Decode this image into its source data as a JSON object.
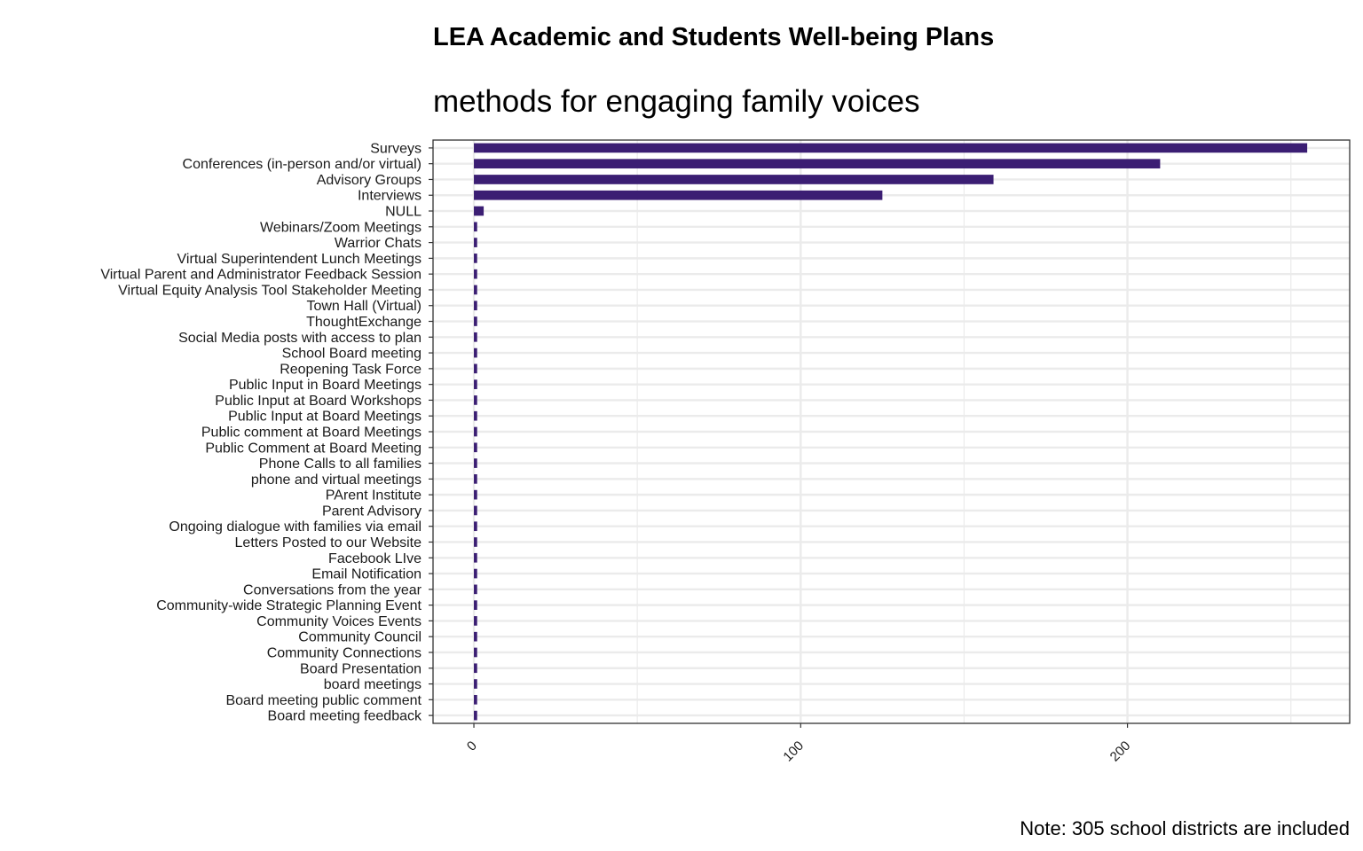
{
  "chart_data": {
    "type": "bar",
    "orientation": "horizontal",
    "title": "LEA Academic and Students Well-being Plans",
    "subtitle": "methods for engaging family voices",
    "caption": "Note: 305 school districts are included",
    "xlabel": "",
    "ylabel": "",
    "xlim": [
      -12.5,
      268
    ],
    "xticks": [
      0,
      100,
      200
    ],
    "grid": true,
    "bar_color": "#3b1e73",
    "categories": [
      "Surveys",
      "Conferences (in-person and/or virtual)",
      "Advisory Groups",
      "Interviews",
      "NULL",
      "Webinars/Zoom Meetings",
      "Warrior Chats",
      "Virtual Superintendent Lunch Meetings",
      "Virtual Parent and Administrator Feedback Session",
      "Virtual Equity Analysis Tool Stakeholder Meeting",
      "Town Hall (Virtual)",
      "ThoughtExchange",
      "Social Media posts with access to plan",
      "School Board meeting",
      "Reopening Task Force",
      "Public Input in Board Meetings",
      "Public Input at Board Workshops",
      "Public Input at Board Meetings",
      "Public comment at Board Meetings",
      "Public Comment at Board Meeting",
      "Phone Calls to all families",
      "phone and virtual meetings",
      "PArent Institute",
      "Parent Advisory",
      "Ongoing dialogue with families via email",
      "Letters Posted to our Website",
      "Facebook LIve",
      "Email Notification",
      "Conversations from the year",
      "Community-wide Strategic Planning Event",
      "Community Voices Events",
      "Community Council",
      "Community Connections",
      "Board Presentation",
      "board meetings",
      "Board meeting public comment",
      "Board meeting feedback"
    ],
    "values": [
      255,
      210,
      159,
      125,
      3,
      1,
      1,
      1,
      1,
      1,
      1,
      1,
      1,
      1,
      1,
      1,
      1,
      1,
      1,
      1,
      1,
      1,
      1,
      1,
      1,
      1,
      1,
      1,
      1,
      1,
      1,
      1,
      1,
      1,
      1,
      1,
      1
    ]
  }
}
